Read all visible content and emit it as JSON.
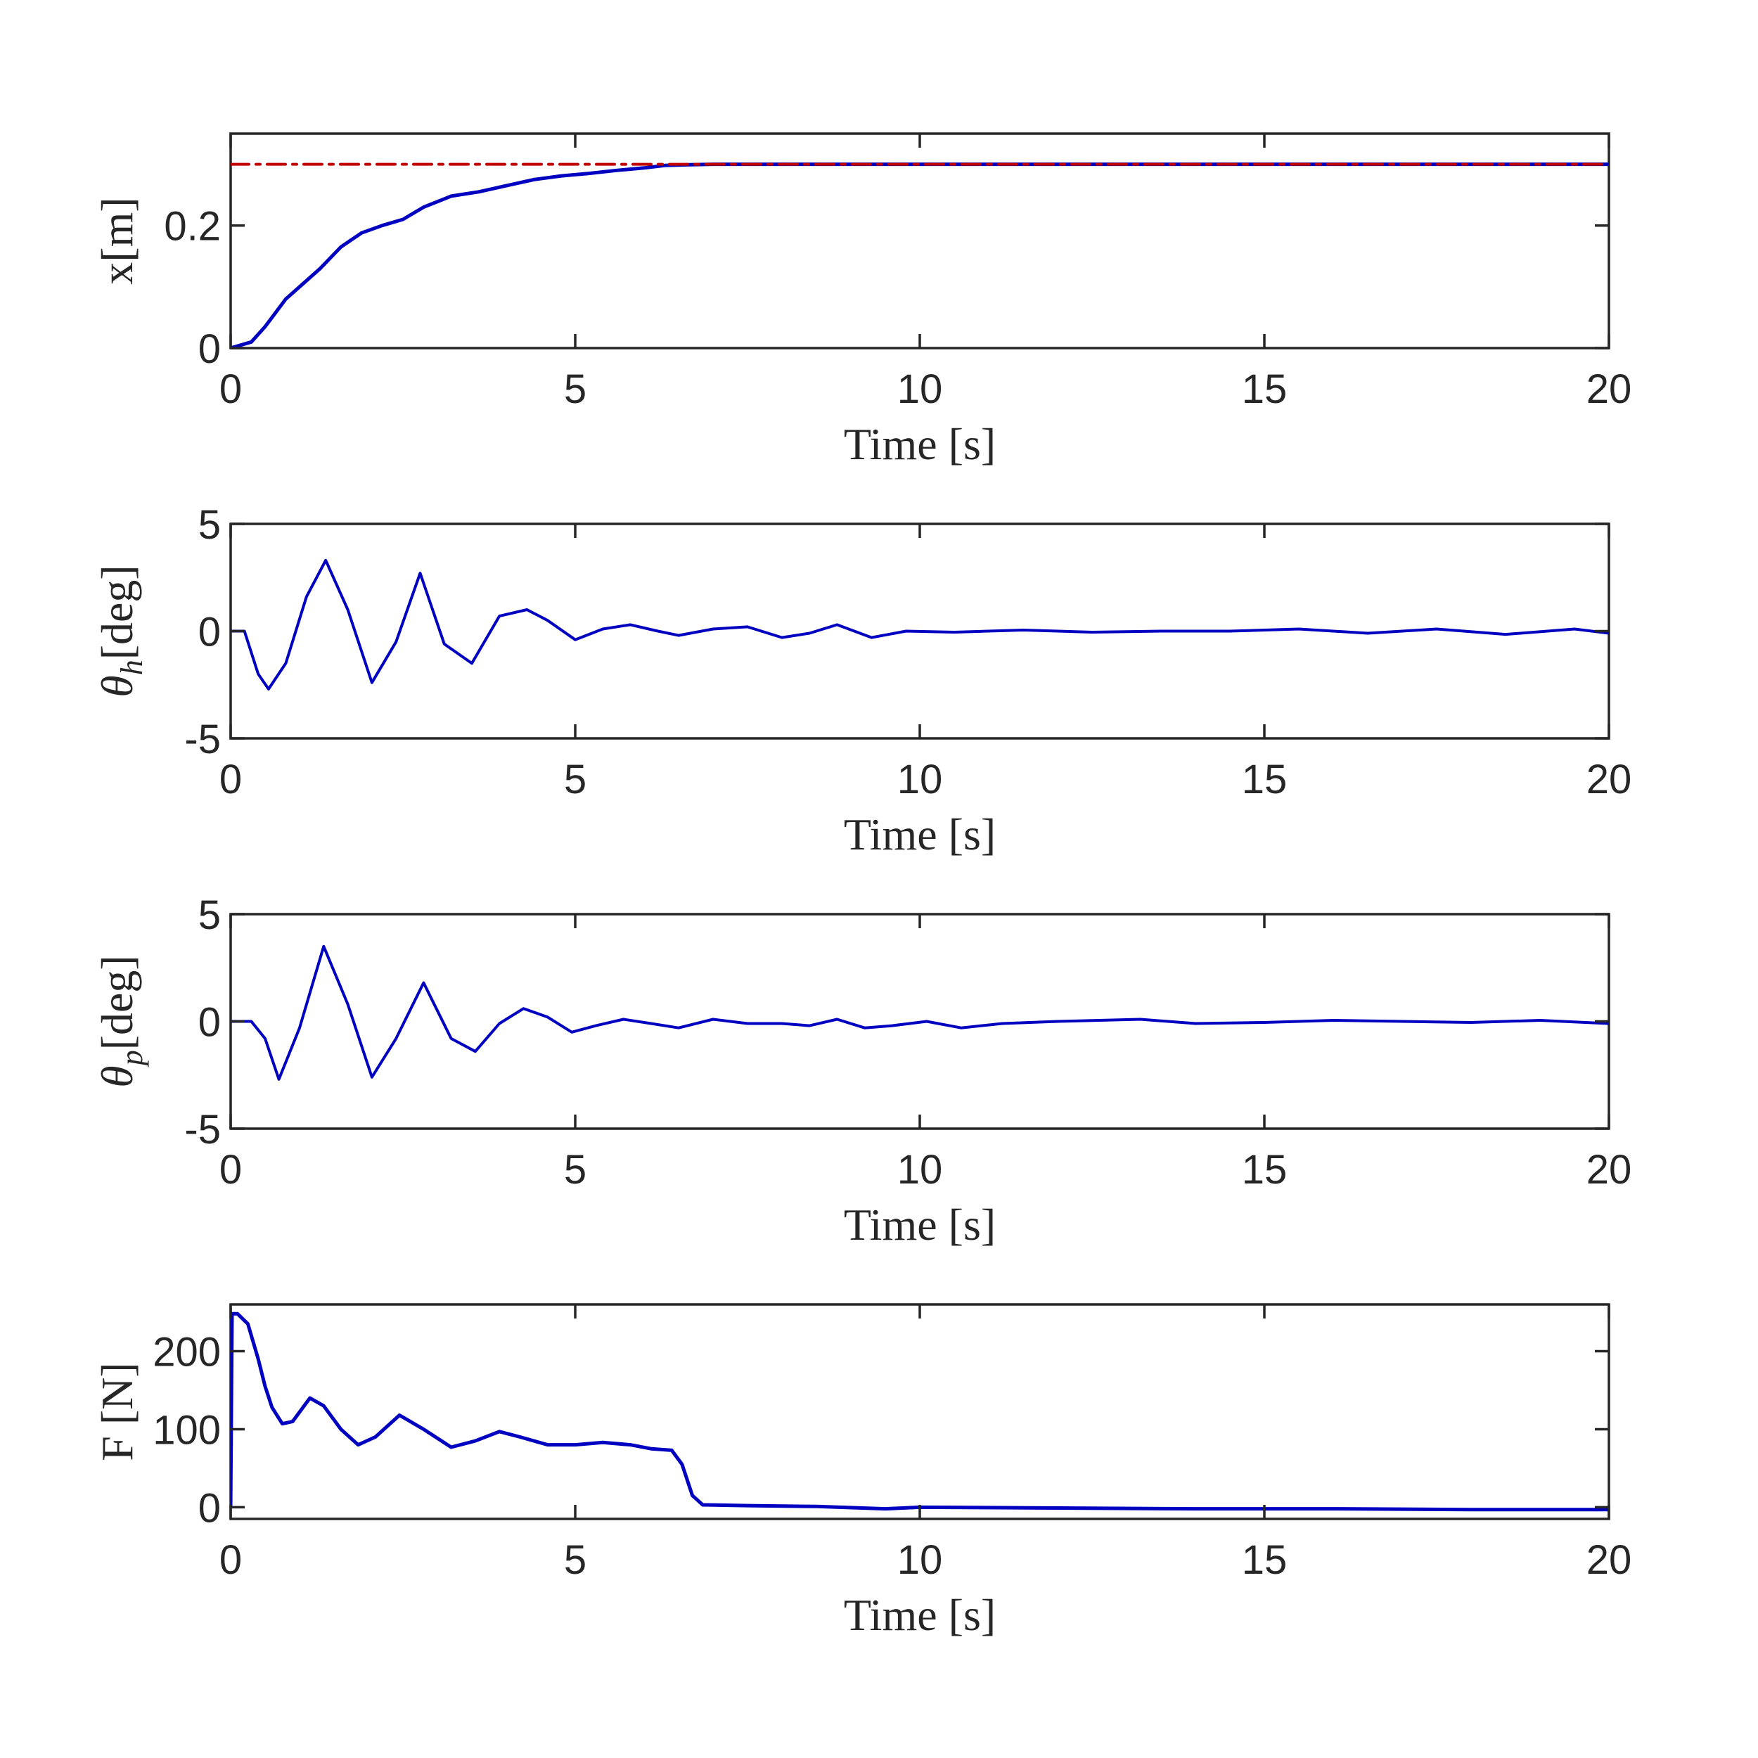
{
  "chart_data": [
    {
      "type": "line",
      "xlabel": "Time [s]",
      "ylabel": "x[m]",
      "ylabel_sub": "",
      "xlim": [
        0,
        20
      ],
      "ylim": [
        0,
        0.35
      ],
      "xticks": [
        0,
        5,
        10,
        15,
        20
      ],
      "yticks": [
        0,
        0.2
      ],
      "ytick_labels": [
        "0",
        "0.2"
      ],
      "series": [
        {
          "color": "#0000c0",
          "style": "solid",
          "width": 5,
          "x": [
            0,
            0.3,
            0.5,
            0.8,
            1.0,
            1.3,
            1.6,
            1.9,
            2.2,
            2.5,
            2.8,
            3.2,
            3.6,
            4.0,
            4.4,
            4.8,
            5.2,
            5.6,
            6.0,
            6.3,
            6.6,
            7.0,
            8.0,
            10.0,
            15.0,
            20.0
          ],
          "y": [
            0,
            0.01,
            0.035,
            0.08,
            0.1,
            0.13,
            0.165,
            0.188,
            0.2,
            0.21,
            0.23,
            0.248,
            0.255,
            0.265,
            0.275,
            0.281,
            0.285,
            0.29,
            0.294,
            0.298,
            0.299,
            0.3,
            0.3,
            0.3,
            0.3,
            0.3
          ]
        },
        {
          "color": "#c00000",
          "style": "dashdot",
          "width": 4,
          "x": [
            0,
            20
          ],
          "y": [
            0.3,
            0.3
          ]
        }
      ]
    },
    {
      "type": "line",
      "xlabel": "Time [s]",
      "ylabel": "θ",
      "ylabel_sub": "h",
      "ylabel_suffix": "[deg]",
      "xlim": [
        0,
        20
      ],
      "ylim": [
        -5,
        5
      ],
      "xticks": [
        0,
        5,
        10,
        15,
        20
      ],
      "yticks": [
        -5,
        0,
        5
      ],
      "ytick_labels": [
        "-5",
        "0",
        "5"
      ],
      "series": [
        {
          "color": "#0000c0",
          "style": "solid",
          "width": 4,
          "x": [
            0,
            0.2,
            0.4,
            0.55,
            0.8,
            1.1,
            1.38,
            1.7,
            2.05,
            2.4,
            2.75,
            3.1,
            3.5,
            3.9,
            4.3,
            4.6,
            5.0,
            5.4,
            5.8,
            6.2,
            6.5,
            7.0,
            7.5,
            8.0,
            8.4,
            8.8,
            9.3,
            9.8,
            10.5,
            11.5,
            12.5,
            13.5,
            14.5,
            15.5,
            16.5,
            17.5,
            18.5,
            19.5,
            20.0
          ],
          "y": [
            0,
            0,
            -2.0,
            -2.7,
            -1.5,
            1.6,
            3.3,
            1.0,
            -2.4,
            -0.5,
            2.7,
            -0.6,
            -1.5,
            0.7,
            1.0,
            0.5,
            -0.4,
            0.1,
            0.3,
            0.0,
            -0.2,
            0.1,
            0.2,
            -0.3,
            -0.1,
            0.3,
            -0.3,
            0.0,
            -0.05,
            0.05,
            -0.05,
            0.0,
            0.0,
            0.1,
            -0.1,
            0.1,
            -0.15,
            0.1,
            -0.1
          ]
        }
      ]
    },
    {
      "type": "line",
      "xlabel": "Time [s]",
      "ylabel": "θ",
      "ylabel_sub": "p",
      "ylabel_suffix": "[deg]",
      "xlim": [
        0,
        20
      ],
      "ylim": [
        -5,
        5
      ],
      "xticks": [
        0,
        5,
        10,
        15,
        20
      ],
      "yticks": [
        -5,
        0,
        5
      ],
      "ytick_labels": [
        "-5",
        "0",
        "5"
      ],
      "series": [
        {
          "color": "#0000c0",
          "style": "solid",
          "width": 4,
          "x": [
            0,
            0.3,
            0.5,
            0.7,
            1.0,
            1.35,
            1.7,
            2.05,
            2.4,
            2.8,
            3.2,
            3.55,
            3.9,
            4.25,
            4.6,
            4.95,
            5.3,
            5.7,
            6.1,
            6.5,
            7.0,
            7.5,
            8.0,
            8.4,
            8.8,
            9.2,
            9.6,
            10.1,
            10.6,
            11.2,
            12.0,
            13.2,
            14.0,
            15.0,
            16.0,
            17.0,
            18.0,
            19.0,
            20.0
          ],
          "y": [
            0,
            0,
            -0.8,
            -2.7,
            -0.3,
            3.5,
            0.8,
            -2.6,
            -0.8,
            1.8,
            -0.8,
            -1.4,
            -0.1,
            0.6,
            0.2,
            -0.5,
            -0.2,
            0.1,
            -0.1,
            -0.3,
            0.1,
            -0.1,
            -0.1,
            -0.2,
            0.1,
            -0.3,
            -0.2,
            0.0,
            -0.3,
            -0.1,
            0.0,
            0.1,
            -0.1,
            -0.05,
            0.05,
            0.0,
            -0.05,
            0.05,
            -0.1
          ]
        }
      ]
    },
    {
      "type": "line",
      "xlabel": "Time [s]",
      "ylabel": "F [N]",
      "ylabel_sub": "",
      "xlim": [
        0,
        20
      ],
      "ylim": [
        -15,
        260
      ],
      "xticks": [
        0,
        5,
        10,
        15,
        20
      ],
      "yticks": [
        0,
        100,
        200
      ],
      "ytick_labels": [
        "0",
        "100",
        "200"
      ],
      "series": [
        {
          "color": "#0000c0",
          "style": "solid",
          "width": 5,
          "x": [
            0,
            0.02,
            0.1,
            0.25,
            0.4,
            0.5,
            0.6,
            0.75,
            0.9,
            1.15,
            1.35,
            1.6,
            1.85,
            2.1,
            2.45,
            2.8,
            3.2,
            3.55,
            3.9,
            4.2,
            4.6,
            5.0,
            5.4,
            5.8,
            6.1,
            6.4,
            6.55,
            6.7,
            6.85,
            7.5,
            8.5,
            9.5,
            10.0,
            12.0,
            14.0,
            16.0,
            18.0,
            20.0
          ],
          "y": [
            0,
            248,
            248,
            235,
            190,
            155,
            128,
            107,
            110,
            140,
            130,
            100,
            80,
            90,
            118,
            100,
            77,
            85,
            97,
            90,
            80,
            80,
            83,
            80,
            75,
            73,
            55,
            15,
            3,
            2,
            1,
            -2,
            0,
            -1,
            -2,
            -2,
            -3,
            -3
          ]
        }
      ]
    }
  ]
}
